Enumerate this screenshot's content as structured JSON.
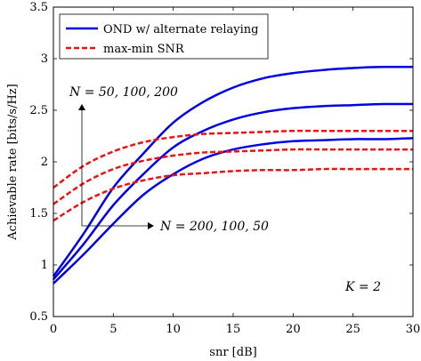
{
  "chart_data": {
    "type": "line",
    "xlabel": "snr [dB]",
    "ylabel": "Achievable rate [bits/s/Hz]",
    "xlim": [
      0,
      30
    ],
    "ylim": [
      0.5,
      3.5
    ],
    "x_ticks": [
      "0",
      "5",
      "10",
      "15",
      "20",
      "25",
      "30"
    ],
    "y_ticks": [
      "0.5",
      "1",
      "1.5",
      "2",
      "2.5",
      "3",
      "3.5"
    ],
    "grid": false,
    "legend_position": "top-left",
    "legend": [
      {
        "label": "OND w/ alternate relaying",
        "color": "#0000e0",
        "style": "solid"
      },
      {
        "label": "max-min SNR",
        "color": "#ee1111",
        "style": "dashed"
      }
    ],
    "series": [
      {
        "group": "OND w/ alternate relaying",
        "color": "#0000e0",
        "style": "solid",
        "x": [
          0,
          2.5,
          5,
          7.5,
          10,
          12.5,
          15,
          17.5,
          20,
          22.5,
          25,
          27.5,
          30
        ],
        "y": [
          0.89,
          1.3,
          1.75,
          2.08,
          2.38,
          2.58,
          2.72,
          2.81,
          2.86,
          2.89,
          2.91,
          2.92,
          2.92
        ]
      },
      {
        "group": "OND w/ alternate relaying",
        "color": "#0000e0",
        "style": "solid",
        "x": [
          0,
          2.5,
          5,
          7.5,
          10,
          12.5,
          15,
          17.5,
          20,
          22.5,
          25,
          27.5,
          30
        ],
        "y": [
          0.86,
          1.2,
          1.58,
          1.88,
          2.14,
          2.3,
          2.41,
          2.48,
          2.52,
          2.54,
          2.55,
          2.56,
          2.56
        ]
      },
      {
        "group": "OND w/ alternate relaying",
        "color": "#0000e0",
        "style": "solid",
        "x": [
          0,
          2.5,
          5,
          7.5,
          10,
          12.5,
          15,
          17.5,
          20,
          22.5,
          25,
          27.5,
          30
        ],
        "y": [
          0.82,
          1.1,
          1.4,
          1.68,
          1.88,
          2.03,
          2.12,
          2.17,
          2.2,
          2.21,
          2.22,
          2.22,
          2.23
        ]
      },
      {
        "group": "max-min SNR",
        "color": "#ee1111",
        "style": "dashed",
        "x": [
          0,
          2.5,
          5,
          7.5,
          10,
          12.5,
          15,
          17.5,
          20,
          22.5,
          25,
          27.5,
          30
        ],
        "y": [
          1.75,
          1.96,
          2.1,
          2.19,
          2.24,
          2.27,
          2.28,
          2.29,
          2.3,
          2.3,
          2.3,
          2.3,
          2.3
        ]
      },
      {
        "group": "max-min SNR",
        "color": "#ee1111",
        "style": "dashed",
        "x": [
          0,
          2.5,
          5,
          7.5,
          10,
          12.5,
          15,
          17.5,
          20,
          22.5,
          25,
          27.5,
          30
        ],
        "y": [
          1.59,
          1.79,
          1.93,
          2.01,
          2.06,
          2.09,
          2.1,
          2.11,
          2.12,
          2.12,
          2.12,
          2.12,
          2.12
        ]
      },
      {
        "group": "max-min SNR",
        "color": "#ee1111",
        "style": "dashed",
        "x": [
          0,
          2.5,
          5,
          7.5,
          10,
          12.5,
          15,
          17.5,
          20,
          22.5,
          25,
          27.5,
          30
        ],
        "y": [
          1.43,
          1.61,
          1.74,
          1.82,
          1.87,
          1.89,
          1.91,
          1.92,
          1.92,
          1.93,
          1.93,
          1.93,
          1.93
        ]
      }
    ],
    "annotations": [
      {
        "text": "N = 50, 100, 200"
      },
      {
        "text": "N = 200, 100, 50"
      },
      {
        "text": "K = 2"
      }
    ]
  }
}
